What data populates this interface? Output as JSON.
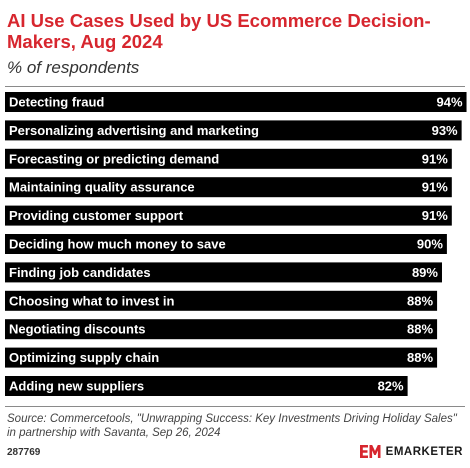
{
  "title": "AI Use Cases Used by US Ecommerce Decision-Makers, Aug 2024",
  "subtitle": "% of respondents",
  "source": "Source: Commercetools, \"Unwrapping Success: Key Investments Driving Holiday Sales\" in partnership with Savanta, Sep 26, 2024",
  "chart_id": "287769",
  "brand": "EMARKETER",
  "colors": {
    "bar": "#000000",
    "title": "#d7262e",
    "label": "#ffffff",
    "brand_mark": "#d7262e"
  },
  "chart_data": {
    "type": "bar",
    "orientation": "horizontal",
    "title": "AI Use Cases Used by US Ecommerce Decision-Makers, Aug 2024",
    "subtitle": "% of respondents",
    "xlim": [
      0,
      100
    ],
    "grid": false,
    "categories": [
      "Detecting fraud",
      "Personalizing advertising and marketing",
      "Forecasting or predicting demand",
      "Maintaining quality assurance",
      "Providing customer support",
      "Deciding how much money to save",
      "Finding job candidates",
      "Choosing what to invest in",
      "Negotiating discounts",
      "Optimizing supply chain",
      "Adding new suppliers"
    ],
    "values": [
      94,
      93,
      91,
      91,
      91,
      90,
      89,
      88,
      88,
      88,
      82
    ],
    "value_labels": [
      "94%",
      "93%",
      "91%",
      "91%",
      "91%",
      "90%",
      "89%",
      "88%",
      "88%",
      "88%",
      "82%"
    ]
  }
}
